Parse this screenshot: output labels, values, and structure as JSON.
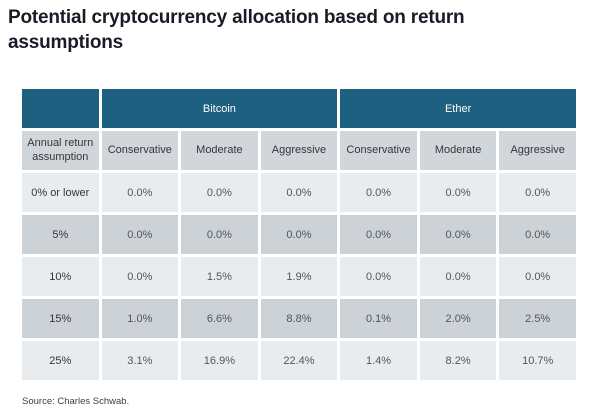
{
  "title": "Potential cryptocurrency allocation based on return assumptions",
  "source": "Source: Charles Schwab.",
  "colors": {
    "group_header_bg": "#1e607f",
    "group_header_text": "#ffffff",
    "subheader_bg": "#d1d6da",
    "row_light_bg": "#e9ecef",
    "row_dark_bg": "#cdd2d6",
    "title_text": "#1b1b27"
  },
  "chart_data": {
    "type": "table",
    "title": "Potential cryptocurrency allocation based on return assumptions",
    "corner_label": "Annual return assumption",
    "groups": [
      {
        "label": "Bitcoin"
      },
      {
        "label": "Ether"
      }
    ],
    "sub_headers": [
      "Conservative",
      "Moderate",
      "Aggressive",
      "Conservative",
      "Moderate",
      "Aggressive"
    ],
    "rows": [
      {
        "label": "0% or lower",
        "values": [
          "0.0%",
          "0.0%",
          "0.0%",
          "0.0%",
          "0.0%",
          "0.0%"
        ]
      },
      {
        "label": "5%",
        "values": [
          "0.0%",
          "0.0%",
          "0.0%",
          "0.0%",
          "0.0%",
          "0.0%"
        ]
      },
      {
        "label": "10%",
        "values": [
          "0.0%",
          "1.5%",
          "1.9%",
          "0.0%",
          "0.0%",
          "0.0%"
        ]
      },
      {
        "label": "15%",
        "values": [
          "1.0%",
          "6.6%",
          "8.8%",
          "0.1%",
          "2.0%",
          "2.5%"
        ]
      },
      {
        "label": "25%",
        "values": [
          "3.1%",
          "16.9%",
          "22.4%",
          "1.4%",
          "8.2%",
          "10.7%"
        ]
      }
    ],
    "source": "Source: Charles Schwab."
  }
}
